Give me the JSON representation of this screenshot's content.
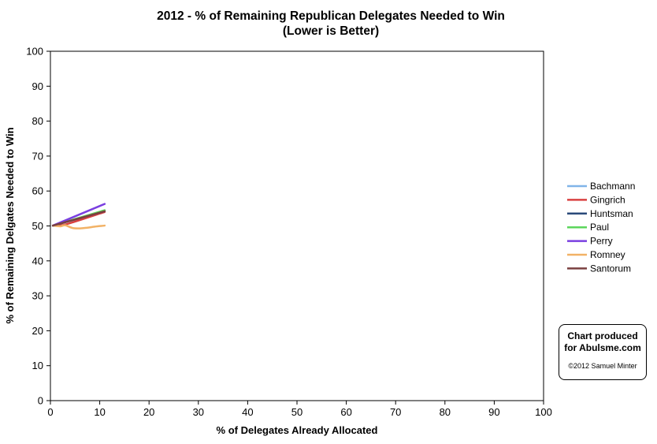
{
  "chart_data": {
    "type": "line",
    "title_line1": "2012 - % of Remaining Republican Delegates Needed to Win",
    "title_line2": "(Lower is Better)",
    "xlabel": "% of Delegates Already Allocated",
    "ylabel": "% of Remaining Delgates Needed to Win",
    "xlim": [
      0,
      100
    ],
    "ylim": [
      0,
      100
    ],
    "x_ticks": [
      0,
      10,
      20,
      30,
      40,
      50,
      60,
      70,
      80,
      90,
      100
    ],
    "y_ticks": [
      0,
      10,
      20,
      30,
      40,
      50,
      60,
      70,
      80,
      90,
      100
    ],
    "grid": false,
    "legend_position": "right",
    "series": [
      {
        "name": "Bachmann",
        "color": "#80b4e8",
        "x": [
          0.5,
          11
        ],
        "y": [
          50.1,
          54.3
        ]
      },
      {
        "name": "Gingrich",
        "color": "#d94040",
        "x": [
          0.5,
          3,
          11
        ],
        "y": [
          50.1,
          50.4,
          54.0
        ]
      },
      {
        "name": "Huntsman",
        "color": "#2a4a7a",
        "x": [
          0.5,
          11
        ],
        "y": [
          50.1,
          54.2
        ]
      },
      {
        "name": "Paul",
        "color": "#5cd65c",
        "x": [
          0.5,
          11
        ],
        "y": [
          50.1,
          54.5
        ]
      },
      {
        "name": "Perry",
        "color": "#7a3fe0",
        "x": [
          0.5,
          11
        ],
        "y": [
          50.1,
          56.3
        ]
      },
      {
        "name": "Romney",
        "color": "#f2b266",
        "x": [
          0.5,
          2,
          3,
          4.5,
          6,
          7.5,
          9,
          11
        ],
        "y": [
          50.1,
          49.9,
          50.2,
          49.4,
          49.3,
          49.5,
          49.8,
          50.1
        ]
      },
      {
        "name": "Santorum",
        "color": "#7a4040",
        "x": [
          0.5,
          11
        ],
        "y": [
          50.1,
          54.2
        ]
      }
    ]
  },
  "credit": {
    "line1": "Chart produced",
    "line2": "for Abulsme.com",
    "copyright": "©2012 Samuel Minter"
  }
}
